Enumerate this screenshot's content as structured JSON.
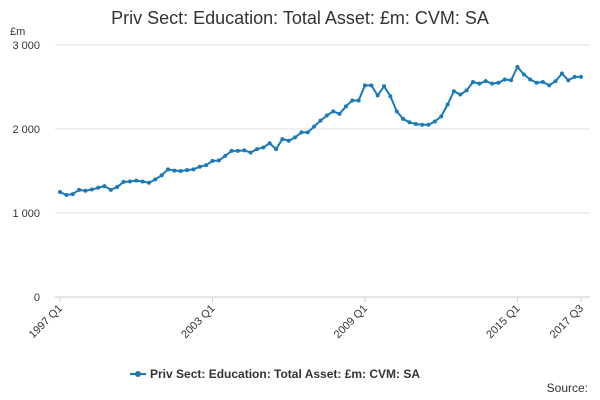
{
  "chart_data": {
    "type": "line",
    "title": "Priv Sect: Education: Total Asset: £m: CVM: SA",
    "y_label": "£m",
    "source": "Source:",
    "categories": [
      "1997 Q1",
      null,
      null,
      null,
      null,
      null,
      null,
      null,
      null,
      null,
      null,
      null,
      null,
      null,
      null,
      null,
      null,
      null,
      null,
      null,
      null,
      null,
      null,
      null,
      "2003 Q1",
      null,
      null,
      null,
      null,
      null,
      null,
      null,
      null,
      null,
      null,
      null,
      null,
      null,
      null,
      null,
      null,
      null,
      null,
      null,
      null,
      null,
      null,
      null,
      "2009 Q1",
      null,
      null,
      null,
      null,
      null,
      null,
      null,
      null,
      null,
      null,
      null,
      null,
      null,
      null,
      null,
      null,
      null,
      null,
      null,
      null,
      null,
      null,
      null,
      "2015 Q1",
      null,
      null,
      null,
      null,
      null,
      null,
      null,
      null,
      null,
      "2017 Q3"
    ],
    "series": [
      {
        "name": "Priv Sect: Education: Total Asset: £m: CVM: SA",
        "color": "#1a7ab8",
        "values": [
          1250,
          1215,
          1225,
          1275,
          1265,
          1280,
          1300,
          1320,
          1275,
          1310,
          1370,
          1375,
          1385,
          1375,
          1360,
          1400,
          1450,
          1520,
          1505,
          1500,
          1510,
          1520,
          1550,
          1570,
          1620,
          1625,
          1680,
          1740,
          1740,
          1745,
          1720,
          1760,
          1780,
          1830,
          1760,
          1880,
          1860,
          1900,
          1960,
          1960,
          2030,
          2100,
          2160,
          2210,
          2180,
          2270,
          2340,
          2340,
          2520,
          2520,
          2400,
          2510,
          2390,
          2210,
          2120,
          2080,
          2060,
          2050,
          2050,
          2090,
          2150,
          2290,
          2450,
          2410,
          2460,
          2560,
          2540,
          2570,
          2540,
          2550,
          2590,
          2580,
          2740,
          2650,
          2590,
          2550,
          2560,
          2520,
          2570,
          2660,
          2580,
          2620,
          2620
        ]
      }
    ],
    "ylim": [
      0,
      3000
    ],
    "yticks": [
      0,
      {
        "value": 1000,
        "label": "1 000"
      },
      {
        "value": 2000,
        "label": "2 000"
      },
      {
        "value": 3000,
        "label": "3 000"
      }
    ],
    "grid": true
  }
}
